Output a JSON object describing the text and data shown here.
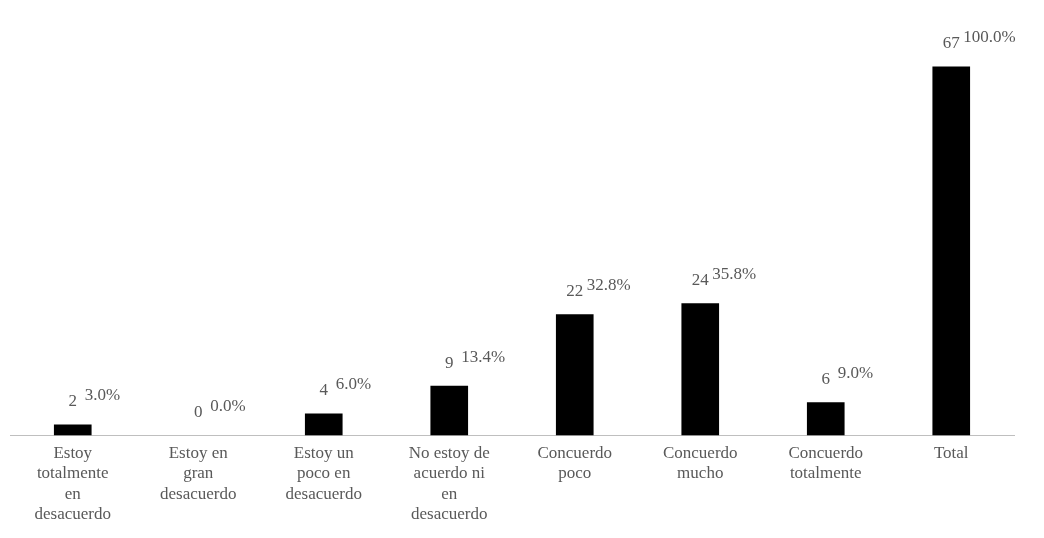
{
  "chart_data": {
    "type": "bar",
    "categories": [
      "Estoy totalmente en desacuerdo",
      "Estoy en gran desacuerdo",
      "Estoy un poco en desacuerdo",
      "No estoy de acuerdo ni en desacuerdo",
      "Concuerdo poco",
      "Concuerdo mucho",
      "Concuerdo totalmente",
      "Total"
    ],
    "values": [
      2,
      0,
      4,
      9,
      22,
      24,
      6,
      67
    ],
    "color": "#000000",
    "data_labels": true,
    "grid": false,
    "legend": false,
    "tick_labels": "x",
    "annotations": [
      {
        "text": "3.0%",
        "x": "Estoy totalmente en desacuerdo",
        "y": 2
      },
      {
        "text": "0.0%",
        "x": "Estoy en gran desacuerdo",
        "y": 0
      },
      {
        "text": "6.0%",
        "x": "Estoy un poco en desacuerdo",
        "y": 4
      },
      {
        "text": "13.4%",
        "x": "No estoy de acuerdo ni en desacuerdo",
        "y": 9
      },
      {
        "text": "32.8%",
        "x": "Concuerdo poco",
        "y": 22
      },
      {
        "text": "35.8%",
        "x": "Concuerdo mucho",
        "y": 24
      },
      {
        "text": "9.0%",
        "x": "Concuerdo totalmente",
        "y": 6
      },
      {
        "text": "100.0%",
        "x": "Total",
        "y": 67
      }
    ]
  }
}
